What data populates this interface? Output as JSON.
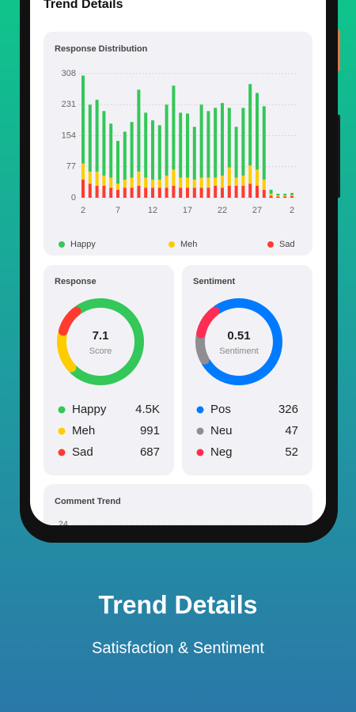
{
  "app_bar": {
    "title": "Trend Details"
  },
  "chart_data": [
    {
      "type": "bar",
      "stacked": true,
      "title": "Response Distribution",
      "categories": [
        2,
        null,
        null,
        null,
        null,
        7,
        null,
        null,
        null,
        null,
        12,
        null,
        null,
        null,
        null,
        17,
        null,
        null,
        null,
        null,
        22,
        null,
        null,
        null,
        null,
        27,
        null,
        null,
        null,
        null,
        2
      ],
      "series": [
        {
          "name": "Happy",
          "color": "#34c759",
          "values": [
            218,
            166,
            178,
            160,
            134,
            106,
            119,
            138,
            203,
            161,
            147,
            135,
            176,
            208,
            161,
            159,
            131,
            181,
            165,
            173,
            180,
            148,
            126,
            168,
            202,
            190,
            182,
            10,
            4,
            4,
            5
          ]
        },
        {
          "name": "Meh",
          "color": "#ffcc00",
          "values": [
            40,
            30,
            35,
            25,
            25,
            15,
            20,
            25,
            35,
            25,
            20,
            20,
            30,
            40,
            25,
            25,
            20,
            25,
            25,
            20,
            30,
            45,
            20,
            25,
            45,
            40,
            25,
            5,
            3,
            3,
            3
          ]
        },
        {
          "name": "Sad",
          "color": "#ff3b30",
          "values": [
            45,
            35,
            30,
            30,
            25,
            20,
            25,
            25,
            30,
            25,
            25,
            25,
            25,
            30,
            25,
            25,
            25,
            25,
            25,
            30,
            25,
            30,
            30,
            30,
            35,
            30,
            20,
            5,
            3,
            3,
            4
          ]
        }
      ],
      "ylim": [
        0,
        308
      ],
      "yticks": [
        0,
        77,
        154,
        231,
        308
      ],
      "grid": true,
      "legend": "bottom"
    },
    {
      "type": "donut",
      "title": "Response",
      "center_value": 7.1,
      "center_label": "Score",
      "series": [
        {
          "name": "Happy",
          "color": "#34c759",
          "value": 4500,
          "value_label": "4.5K"
        },
        {
          "name": "Meh",
          "color": "#ffcc00",
          "value": 991
        },
        {
          "name": "Sad",
          "color": "#ff3b30",
          "value": 687
        }
      ]
    },
    {
      "type": "donut",
      "title": "Sentiment",
      "center_value": 0.51,
      "center_label": "Sentiment",
      "series": [
        {
          "name": "Pos",
          "color": "#007aff",
          "value": 326
        },
        {
          "name": "Neu",
          "color": "#8e8e93",
          "value": 47
        },
        {
          "name": "Neg",
          "color": "#ff2d55",
          "value": 52
        }
      ]
    },
    {
      "type": "line",
      "title": "Comment Trend",
      "yticks": [
        24
      ]
    }
  ],
  "caption": {
    "title": "Trend Details",
    "subtitle": "Satisfaction & Sentiment"
  }
}
